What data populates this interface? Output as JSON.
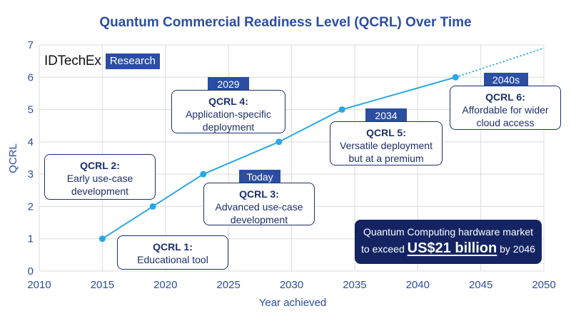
{
  "chart_data": {
    "type": "line",
    "title": "Quantum Commercial Readiness Level (QCRL) Over Time",
    "xlabel": "Year achieved",
    "ylabel": "QCRL",
    "xlim": [
      2010,
      2050
    ],
    "ylim": [
      0,
      7
    ],
    "x_ticks": [
      2010,
      2015,
      2020,
      2025,
      2030,
      2035,
      2040,
      2045,
      2050
    ],
    "y_ticks": [
      0,
      1,
      2,
      3,
      4,
      5,
      6,
      7
    ],
    "grid": true,
    "series": [
      {
        "x": [
          2015,
          2019,
          2023,
          2029,
          2034,
          2043
        ],
        "y": [
          1,
          2,
          3,
          4,
          5,
          6
        ],
        "color": "#29a9e1",
        "style": "solid",
        "markers": true
      },
      {
        "x": [
          2043,
          2050
        ],
        "y": [
          6,
          6.9
        ],
        "color": "#29a9e1",
        "style": "dotted",
        "markers": false
      }
    ],
    "annotations": [
      {
        "id": "q1",
        "title": "QCRL 1:",
        "desc": [
          "Educational tool"
        ],
        "tag": ""
      },
      {
        "id": "q2",
        "title": "QCRL 2:",
        "desc": [
          "Early use-case",
          "development"
        ],
        "tag": ""
      },
      {
        "id": "q3",
        "title": "QCRL 3:",
        "desc": [
          "Advanced use-case",
          "development"
        ],
        "tag": "Today"
      },
      {
        "id": "q4",
        "title": "QCRL 4:",
        "desc": [
          "Application-specific",
          "deployment"
        ],
        "tag": "2029"
      },
      {
        "id": "q5",
        "title": "QCRL 5:",
        "desc": [
          "Versatile deployment",
          "but at a premium"
        ],
        "tag": "2034"
      },
      {
        "id": "q6",
        "title": "QCRL 6:",
        "desc": [
          "Affordable for wider",
          "cloud access"
        ],
        "tag": "2040s"
      }
    ]
  },
  "logo": {
    "brand": "IDTechEx",
    "badge": "Research"
  },
  "market": {
    "line1": "Quantum Computing hardware market",
    "prefix": "to exceed ",
    "highlight": "US$21 billion",
    "suffix": " by 2046"
  },
  "colors": {
    "title": "#2b4ea2",
    "axis_text": "#2b4ea2",
    "grid": "#dcdcdc",
    "line": "#29a9e1",
    "box_border": "#1c2f6b",
    "tag_bg": "#2b4ea2",
    "market_bg": "#142463"
  }
}
